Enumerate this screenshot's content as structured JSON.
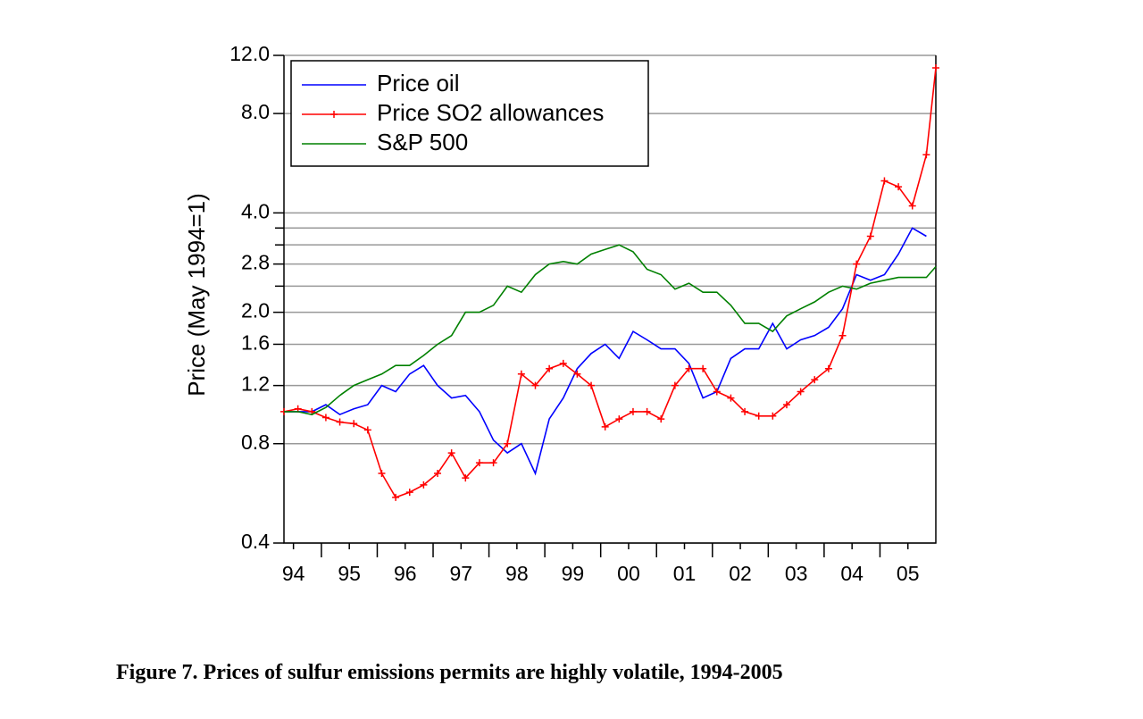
{
  "chart_data": {
    "type": "line",
    "caption": "Figure 7. Prices of sulfur emissions permits are highly volatile, 1994-2005",
    "ylabel": "Price (May 1994=1)",
    "log_y": true,
    "grid": true,
    "legend": "upper left",
    "ylim": [
      0.4,
      12.0
    ],
    "yticks": [
      {
        "value": 0.4,
        "label": "0.4"
      },
      {
        "value": 0.8,
        "label": "0.8"
      },
      {
        "value": 1.2,
        "label": "1.2"
      },
      {
        "value": 1.6,
        "label": "1.6"
      },
      {
        "value": 2.0,
        "label": "2.0"
      },
      {
        "value": 2.8,
        "label": "2.8"
      },
      {
        "value": 4.0,
        "label": "4.0"
      },
      {
        "value": 8.0,
        "label": "8.0"
      },
      {
        "value": 12.0,
        "label": "12.0"
      }
    ],
    "minor_yticks": [
      2.4,
      3.2,
      3.6
    ],
    "xlim": [
      1994.33,
      2006.0
    ],
    "xticks": [
      {
        "value": 1994.5,
        "label": "94"
      },
      {
        "value": 1995.5,
        "label": "95"
      },
      {
        "value": 1996.5,
        "label": "96"
      },
      {
        "value": 1997.5,
        "label": "97"
      },
      {
        "value": 1998.5,
        "label": "98"
      },
      {
        "value": 1999.5,
        "label": "99"
      },
      {
        "value": 2000.5,
        "label": "00"
      },
      {
        "value": 2001.5,
        "label": "01"
      },
      {
        "value": 2002.5,
        "label": "02"
      },
      {
        "value": 2003.5,
        "label": "03"
      },
      {
        "value": 2004.5,
        "label": "04"
      },
      {
        "value": 2005.5,
        "label": "05"
      }
    ],
    "x_major_ticks": [
      1995,
      1996,
      1997,
      1998,
      1999,
      2000,
      2001,
      2002,
      2003,
      2004,
      2005
    ],
    "x": [
      1994.33,
      1994.58,
      1994.83,
      1995.08,
      1995.33,
      1995.58,
      1995.83,
      1996.08,
      1996.33,
      1996.58,
      1996.83,
      1997.08,
      1997.33,
      1997.58,
      1997.83,
      1998.08,
      1998.33,
      1998.58,
      1998.83,
      1999.08,
      1999.33,
      1999.58,
      1999.83,
      2000.08,
      2000.33,
      2000.58,
      2000.83,
      2001.08,
      2001.33,
      2001.58,
      2001.83,
      2002.08,
      2002.33,
      2002.58,
      2002.83,
      2003.08,
      2003.33,
      2003.58,
      2003.83,
      2004.08,
      2004.33,
      2004.58,
      2004.83,
      2005.08,
      2005.33,
      2005.58,
      2005.83,
      2006.0
    ],
    "series": [
      {
        "name": "Price oil",
        "color": "#0000ff",
        "markers": false,
        "values": [
          1.0,
          1.0,
          1.0,
          1.05,
          0.98,
          1.02,
          1.05,
          1.2,
          1.15,
          1.3,
          1.38,
          1.2,
          1.1,
          1.12,
          1.0,
          0.82,
          0.75,
          0.8,
          0.65,
          0.95,
          1.1,
          1.35,
          1.5,
          1.6,
          1.45,
          1.75,
          1.65,
          1.55,
          1.55,
          1.4,
          1.1,
          1.15,
          1.45,
          1.55,
          1.55,
          1.85,
          1.55,
          1.65,
          1.7,
          1.8,
          2.05,
          2.6,
          2.5,
          2.6,
          3.0,
          3.6,
          3.4,
          null
        ]
      },
      {
        "name": "Price SO2 allowances",
        "color": "#ff0000",
        "markers": true,
        "values": [
          1.0,
          1.02,
          1.0,
          0.96,
          0.93,
          0.92,
          0.88,
          0.65,
          0.55,
          0.57,
          0.6,
          0.65,
          0.75,
          0.63,
          0.7,
          0.7,
          0.8,
          1.3,
          1.2,
          1.35,
          1.4,
          1.3,
          1.2,
          0.9,
          0.95,
          1.0,
          1.0,
          0.95,
          1.2,
          1.35,
          1.35,
          1.15,
          1.1,
          1.0,
          0.97,
          0.97,
          1.05,
          1.15,
          1.25,
          1.35,
          1.7,
          2.8,
          3.4,
          5.0,
          4.8,
          4.2,
          6.0,
          11.0
        ]
      },
      {
        "name": "S&P 500",
        "color": "#008000",
        "markers": false,
        "values": [
          1.0,
          1.0,
          0.98,
          1.03,
          1.12,
          1.2,
          1.25,
          1.3,
          1.38,
          1.38,
          1.48,
          1.6,
          1.7,
          2.0,
          2.0,
          2.1,
          2.4,
          2.3,
          2.6,
          2.8,
          2.85,
          2.8,
          3.0,
          3.1,
          3.2,
          3.05,
          2.7,
          2.6,
          2.35,
          2.45,
          2.3,
          2.3,
          2.1,
          1.85,
          1.85,
          1.75,
          1.95,
          2.05,
          2.15,
          2.3,
          2.4,
          2.35,
          2.45,
          2.5,
          2.55,
          2.55,
          2.55,
          2.75
        ]
      }
    ]
  }
}
